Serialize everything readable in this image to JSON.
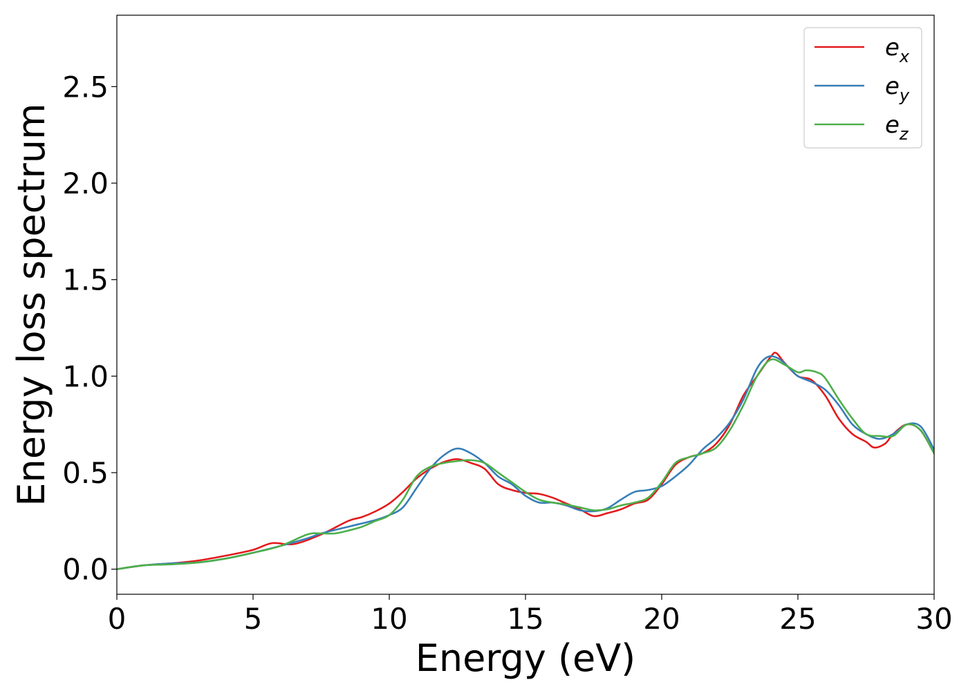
{
  "chart_data": {
    "type": "line",
    "title": "",
    "xlabel": "Energy (eV)",
    "ylabel": "Energy loss spectrum",
    "xlim": [
      0,
      30
    ],
    "ylim": [
      -0.13,
      2.87
    ],
    "xticks": [
      0,
      5,
      10,
      15,
      20,
      25,
      30
    ],
    "xtick_labels": [
      "0",
      "5",
      "10",
      "15",
      "20",
      "25",
      "30"
    ],
    "yticks": [
      0.0,
      0.5,
      1.0,
      1.5,
      2.0,
      2.5
    ],
    "ytick_labels": [
      "0.0",
      "0.5",
      "1.0",
      "1.5",
      "2.0",
      "2.5"
    ],
    "grid": false,
    "legend_position": "top-right",
    "series": [
      {
        "name": "e_x",
        "label_base": "e",
        "label_sub": "x",
        "color": "#e41a1c",
        "x": [
          0,
          1,
          2,
          3,
          4,
          5,
          5.7,
          6.5,
          7.5,
          8.5,
          9,
          9.5,
          10,
          10.5,
          11,
          11.5,
          12,
          12.5,
          13,
          13.5,
          14,
          14.5,
          15,
          15.5,
          16,
          16.5,
          17,
          17.5,
          18,
          18.5,
          19,
          19.5,
          20,
          20.5,
          21,
          21.5,
          22,
          22.5,
          23,
          23.5,
          24,
          24.2,
          24.5,
          25,
          25.5,
          26,
          26.5,
          27,
          27.5,
          27.8,
          28.2,
          28.5,
          29,
          29.5,
          30
        ],
        "y": [
          0.0,
          0.02,
          0.03,
          0.045,
          0.07,
          0.1,
          0.135,
          0.13,
          0.18,
          0.25,
          0.27,
          0.3,
          0.34,
          0.4,
          0.47,
          0.52,
          0.555,
          0.57,
          0.55,
          0.52,
          0.44,
          0.41,
          0.395,
          0.39,
          0.37,
          0.34,
          0.31,
          0.275,
          0.29,
          0.31,
          0.34,
          0.36,
          0.44,
          0.54,
          0.58,
          0.6,
          0.65,
          0.75,
          0.9,
          1.0,
          1.1,
          1.12,
          1.07,
          1.0,
          0.98,
          0.9,
          0.78,
          0.7,
          0.66,
          0.63,
          0.65,
          0.7,
          0.75,
          0.72,
          0.6
        ]
      },
      {
        "name": "e_y",
        "label_base": "e",
        "label_sub": "y",
        "color": "#377eb8",
        "x": [
          0,
          1,
          2,
          3,
          4,
          5,
          6,
          7,
          7.5,
          8.5,
          9.5,
          10,
          10.5,
          11,
          11.5,
          12,
          12.5,
          13,
          13.5,
          14,
          14.5,
          15,
          15.5,
          16,
          16.5,
          17,
          17.5,
          18,
          18.5,
          19,
          19.5,
          20,
          20.5,
          21,
          21.5,
          22,
          22.5,
          23,
          23.5,
          23.9,
          24.3,
          24.7,
          25,
          25.5,
          26,
          26.5,
          27,
          27.5,
          28,
          28.5,
          29,
          29.5,
          30
        ],
        "y": [
          0.0,
          0.02,
          0.03,
          0.035,
          0.055,
          0.085,
          0.12,
          0.16,
          0.185,
          0.22,
          0.255,
          0.28,
          0.32,
          0.42,
          0.52,
          0.59,
          0.625,
          0.6,
          0.55,
          0.48,
          0.44,
          0.38,
          0.345,
          0.345,
          0.33,
          0.305,
          0.3,
          0.315,
          0.36,
          0.4,
          0.41,
          0.43,
          0.48,
          0.54,
          0.62,
          0.68,
          0.76,
          0.88,
          1.04,
          1.1,
          1.09,
          1.04,
          1.0,
          0.97,
          0.93,
          0.85,
          0.75,
          0.7,
          0.675,
          0.7,
          0.75,
          0.74,
          0.62
        ]
      },
      {
        "name": "e_z",
        "label_base": "e",
        "label_sub": "z",
        "color": "#4daf4a",
        "x": [
          0,
          1,
          2,
          3,
          4,
          5,
          6,
          7,
          7.5,
          8,
          8.5,
          9,
          9.5,
          10,
          10.5,
          11,
          11.5,
          12,
          12.5,
          13,
          13.5,
          14,
          14.5,
          15,
          15.5,
          16,
          16.5,
          17,
          17.5,
          18,
          18.5,
          19,
          19.5,
          20,
          20.5,
          21,
          21.5,
          22,
          22.5,
          23,
          23.5,
          24,
          24.5,
          25,
          25.3,
          25.7,
          26,
          26.5,
          27,
          27.5,
          28,
          28.5,
          29,
          29.5,
          30
        ],
        "y": [
          0.0,
          0.02,
          0.025,
          0.035,
          0.055,
          0.085,
          0.12,
          0.18,
          0.185,
          0.185,
          0.2,
          0.22,
          0.25,
          0.28,
          0.36,
          0.48,
          0.53,
          0.55,
          0.56,
          0.565,
          0.55,
          0.5,
          0.45,
          0.4,
          0.36,
          0.345,
          0.335,
          0.32,
          0.305,
          0.31,
          0.33,
          0.345,
          0.37,
          0.45,
          0.55,
          0.58,
          0.6,
          0.63,
          0.72,
          0.85,
          1.0,
          1.085,
          1.06,
          1.02,
          1.03,
          1.02,
          0.99,
          0.88,
          0.78,
          0.7,
          0.69,
          0.69,
          0.75,
          0.72,
          0.6
        ]
      }
    ]
  }
}
